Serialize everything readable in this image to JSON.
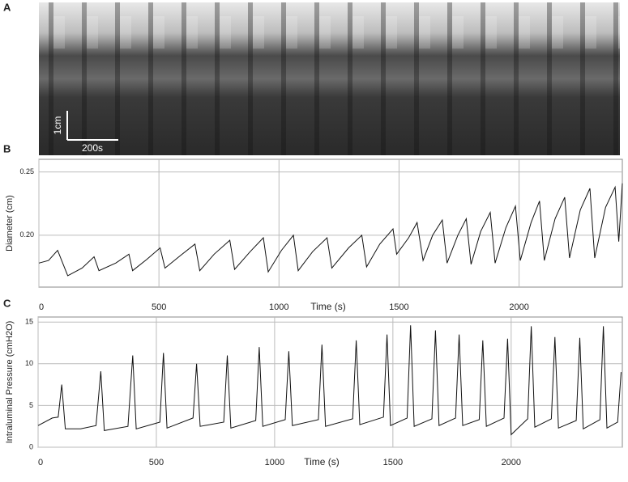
{
  "panel_a": {
    "label": "A",
    "scale_y": "1cm",
    "scale_x": "200s"
  },
  "chart_data": [
    {
      "type": "line",
      "panel": "B",
      "xlabel": "Time (s)",
      "ylabel": "Diameter (cm)",
      "xlim": [
        0,
        2430
      ],
      "ylim": [
        0.159,
        0.26
      ],
      "xticks": [
        0,
        500,
        1000,
        1500,
        2000
      ],
      "yticks": [
        {
          "value": 0.2,
          "label": "0.20"
        },
        {
          "value": 0.25,
          "label": "0.25"
        }
      ],
      "grid": true,
      "x": [
        0,
        40,
        78,
        120,
        180,
        230,
        250,
        320,
        375,
        390,
        450,
        505,
        525,
        590,
        650,
        670,
        730,
        795,
        815,
        880,
        935,
        955,
        1010,
        1060,
        1080,
        1140,
        1200,
        1220,
        1290,
        1345,
        1365,
        1420,
        1475,
        1490,
        1540,
        1575,
        1600,
        1640,
        1680,
        1700,
        1745,
        1780,
        1800,
        1840,
        1880,
        1900,
        1945,
        1985,
        2005,
        2050,
        2085,
        2105,
        2150,
        2190,
        2210,
        2255,
        2295,
        2315,
        2360,
        2400,
        2415,
        2430
      ],
      "series": [
        {
          "name": "Diameter",
          "color": "#111111",
          "values": [
            0.178,
            0.18,
            0.188,
            0.168,
            0.174,
            0.183,
            0.172,
            0.178,
            0.185,
            0.172,
            0.181,
            0.19,
            0.174,
            0.184,
            0.193,
            0.172,
            0.185,
            0.196,
            0.173,
            0.187,
            0.198,
            0.171,
            0.188,
            0.2,
            0.172,
            0.187,
            0.198,
            0.174,
            0.19,
            0.2,
            0.175,
            0.193,
            0.205,
            0.185,
            0.198,
            0.21,
            0.18,
            0.2,
            0.212,
            0.178,
            0.2,
            0.213,
            0.177,
            0.203,
            0.218,
            0.178,
            0.206,
            0.223,
            0.18,
            0.21,
            0.227,
            0.18,
            0.213,
            0.23,
            0.182,
            0.22,
            0.237,
            0.182,
            0.222,
            0.238,
            0.195,
            0.241
          ]
        }
      ]
    },
    {
      "type": "line",
      "panel": "C",
      "xlabel": "Time (s)",
      "ylabel": "Intraluminal Pressure (cmH2O)",
      "xlim": [
        0,
        2470
      ],
      "ylim": [
        0,
        15.6
      ],
      "xticks": [
        0,
        500,
        1000,
        1500,
        2000
      ],
      "yticks": [
        0,
        5,
        10,
        15
      ],
      "grid": true,
      "x": [
        0,
        60,
        85,
        100,
        115,
        180,
        245,
        265,
        280,
        380,
        400,
        415,
        515,
        530,
        545,
        655,
        670,
        685,
        785,
        800,
        815,
        920,
        935,
        950,
        1045,
        1060,
        1075,
        1185,
        1200,
        1215,
        1330,
        1345,
        1360,
        1460,
        1475,
        1490,
        1560,
        1575,
        1590,
        1665,
        1680,
        1695,
        1765,
        1780,
        1795,
        1865,
        1880,
        1895,
        1970,
        1985,
        2000,
        2070,
        2085,
        2100,
        2170,
        2185,
        2200,
        2275,
        2290,
        2305,
        2375,
        2390,
        2405,
        2450,
        2465
      ],
      "series": [
        {
          "name": "Pressure",
          "color": "#111111",
          "values": [
            2.6,
            3.5,
            3.6,
            7.5,
            2.2,
            2.2,
            2.6,
            9.1,
            2.0,
            2.5,
            11,
            2.2,
            3.0,
            11.3,
            2.3,
            3.5,
            10,
            2.5,
            3.0,
            11,
            2.3,
            3.2,
            12,
            2.5,
            3.3,
            11.5,
            2.6,
            3.3,
            12.3,
            2.5,
            3.4,
            12.8,
            2.7,
            3.6,
            13.5,
            2.6,
            3.5,
            14.6,
            2.5,
            3.4,
            14,
            2.6,
            3.5,
            13.5,
            2.6,
            3.3,
            12.8,
            2.5,
            3.5,
            13,
            1.5,
            3.4,
            14.5,
            2.4,
            3.4,
            13.2,
            2.3,
            3.2,
            13.1,
            2.2,
            3.3,
            14.5,
            2.3,
            3.0,
            9.0
          ]
        }
      ]
    }
  ]
}
